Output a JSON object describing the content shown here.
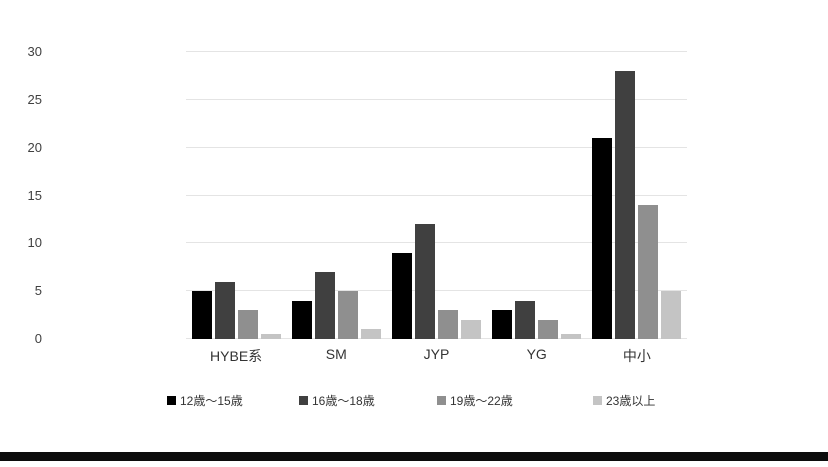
{
  "chart_data": {
    "type": "bar",
    "title": "",
    "xlabel": "",
    "ylabel": "",
    "categories": [
      "HYBE系",
      "SM",
      "JYP",
      "YG",
      "中小"
    ],
    "series": [
      {
        "name": "12歳〜15歳",
        "color": "#000000",
        "values": [
          5,
          4,
          9,
          3,
          21
        ]
      },
      {
        "name": "16歳〜18歳",
        "color": "#404040",
        "values": [
          6,
          7,
          12,
          4,
          28
        ]
      },
      {
        "name": "19歳〜22歳",
        "color": "#8f8f8f",
        "values": [
          3,
          5,
          3,
          2,
          14
        ]
      },
      {
        "name": "23歳以上",
        "color": "#c4c4c4",
        "values": [
          0.5,
          1,
          2,
          0.5,
          5
        ]
      }
    ],
    "ylim": [
      0,
      30
    ],
    "y_ticks": [
      0,
      5,
      10,
      15,
      20,
      25,
      30
    ],
    "grid": true,
    "legend_position": "bottom"
  },
  "layout_colors": {
    "gridline": "#e4e4e4",
    "axis_text": "#404040",
    "bottom_bar": "#0c0c0c",
    "background": "#ffffff"
  },
  "legend_x_positions": [
    167,
    299,
    437,
    593
  ]
}
